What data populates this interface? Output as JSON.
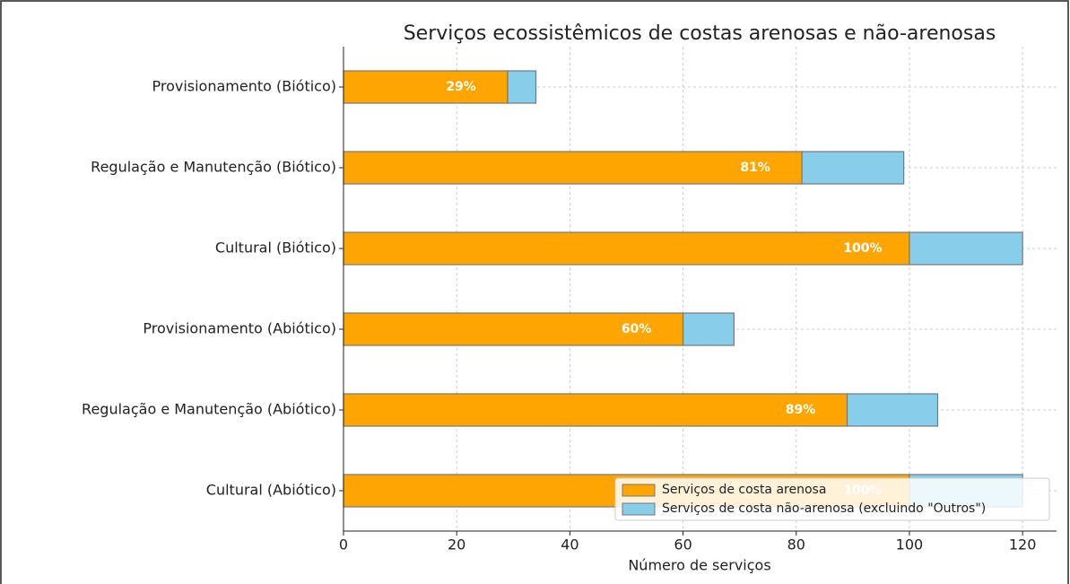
{
  "chart_data": {
    "type": "stacked-barh",
    "title": "Serviços ecossistêmicos de costas arenosas e não-arenosas",
    "x_label": "Número de serviços",
    "categories": [
      "Provisionamento (Biótico)",
      "Regulação e Manutenção (Biótico)",
      "Cultural (Biótico)",
      "Provisionamento (Abiótico)",
      "Regulação e Manutenção (Abiótico)",
      "Cultural (Abiótico)"
    ],
    "series": [
      {
        "name": "Serviços de costa arenosa",
        "color": "#ffa500",
        "values": [
          29,
          81,
          100,
          60,
          89,
          100
        ],
        "value_labels": [
          "29%",
          "81%",
          "100%",
          "60%",
          "89%",
          "100%"
        ]
      },
      {
        "name": "Serviços de costa não-arenosa (excluindo \"Outros\")",
        "color": "#87ceeb",
        "values": [
          5,
          18,
          20,
          9,
          16,
          20
        ]
      }
    ],
    "xlim": [
      0,
      126
    ],
    "xticks": [
      0,
      20,
      40,
      60,
      80,
      100,
      120
    ],
    "grid": true,
    "legend": "lower right"
  }
}
